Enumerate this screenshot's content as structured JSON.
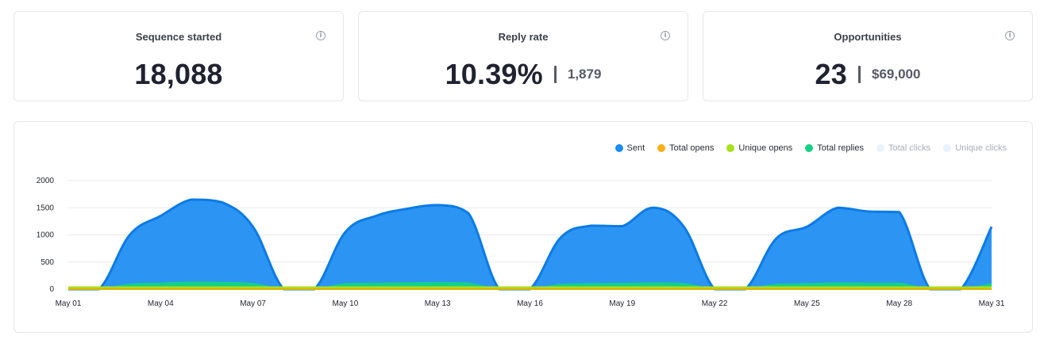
{
  "kpis": [
    {
      "title": "Sequence started",
      "value": "18,088",
      "sub": ""
    },
    {
      "title": "Reply rate",
      "value": "10.39%",
      "sub": "1,879"
    },
    {
      "title": "Opportunities",
      "value": "23",
      "sub": "$69,000"
    }
  ],
  "info_glyph": "i",
  "legend": [
    {
      "label": "Sent",
      "color": "#1a8cf2",
      "muted": false
    },
    {
      "label": "Total opens",
      "color": "#f6ae19",
      "muted": false
    },
    {
      "label": "Unique opens",
      "color": "#a7e21c",
      "muted": false
    },
    {
      "label": "Total replies",
      "color": "#14d284",
      "muted": false
    },
    {
      "label": "Total clicks",
      "color": "#e9f3fd",
      "muted": true
    },
    {
      "label": "Unique clicks",
      "color": "#e9f3fd",
      "muted": true
    }
  ],
  "chart_data": {
    "type": "area",
    "title": "",
    "xlabel": "",
    "ylabel": "",
    "ylim": [
      0,
      2000
    ],
    "yticks": [
      0,
      500,
      1000,
      1500,
      2000
    ],
    "x_tick_labels": [
      {
        "day": 1,
        "label": "May 01"
      },
      {
        "day": 4,
        "label": "May 04"
      },
      {
        "day": 7,
        "label": "May 07"
      },
      {
        "day": 10,
        "label": "May 10"
      },
      {
        "day": 13,
        "label": "May 13"
      },
      {
        "day": 16,
        "label": "May 16"
      },
      {
        "day": 19,
        "label": "May 19"
      },
      {
        "day": 22,
        "label": "May 22"
      },
      {
        "day": 25,
        "label": "May 25"
      },
      {
        "day": 28,
        "label": "May 28"
      },
      {
        "day": 31,
        "label": "May 31"
      }
    ],
    "x": [
      1,
      2,
      3,
      4,
      5,
      6,
      7,
      8,
      9,
      10,
      11,
      12,
      13,
      14,
      15,
      16,
      17,
      18,
      19,
      20,
      21,
      22,
      23,
      24,
      25,
      26,
      27,
      28,
      29,
      30,
      31
    ],
    "grid": true,
    "legend_position": "top-right",
    "series": [
      {
        "name": "Sent",
        "color": "#1a8cf2",
        "values": [
          0,
          0,
          1000,
          1350,
          1650,
          1600,
          1150,
          0,
          0,
          1050,
          1350,
          1480,
          1550,
          1400,
          0,
          0,
          950,
          1170,
          1160,
          1500,
          1150,
          0,
          0,
          930,
          1150,
          1500,
          1430,
          1420,
          0,
          0,
          1150
        ]
      },
      {
        "name": "Total replies",
        "color": "#14d284",
        "values": [
          0,
          0,
          90,
          110,
          130,
          125,
          100,
          0,
          0,
          100,
          110,
          115,
          120,
          110,
          0,
          0,
          85,
          100,
          105,
          115,
          100,
          0,
          0,
          85,
          100,
          115,
          110,
          110,
          0,
          0,
          100
        ]
      },
      {
        "name": "Unique opens",
        "color": "#a7e21c",
        "values": [
          40,
          40,
          40,
          40,
          40,
          40,
          40,
          40,
          40,
          40,
          40,
          40,
          40,
          40,
          40,
          40,
          40,
          40,
          40,
          40,
          40,
          40,
          40,
          40,
          40,
          40,
          40,
          40,
          40,
          40,
          40
        ]
      },
      {
        "name": "Total opens",
        "color": "#f6ae19",
        "values": [
          10,
          10,
          10,
          10,
          10,
          10,
          10,
          10,
          10,
          10,
          10,
          10,
          10,
          10,
          10,
          10,
          10,
          10,
          10,
          10,
          10,
          10,
          10,
          10,
          10,
          10,
          10,
          10,
          10,
          10,
          10
        ]
      }
    ]
  }
}
